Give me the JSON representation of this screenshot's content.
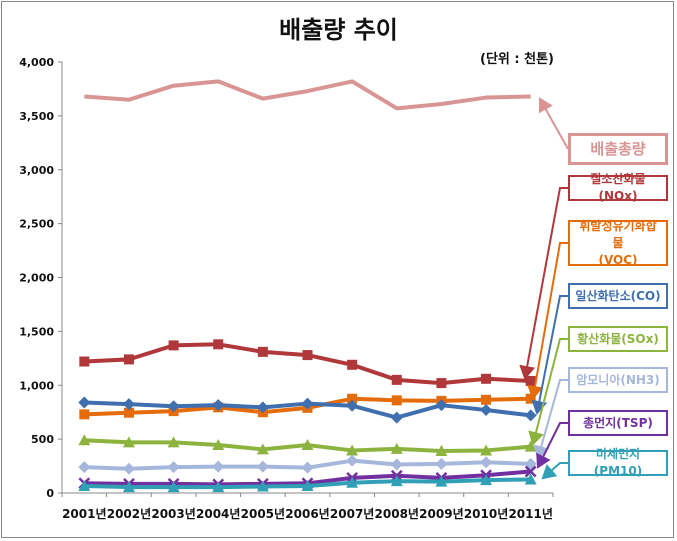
{
  "title": "배출량 추이",
  "unit_note": "(단위 : 천톤)",
  "chart_data": {
    "type": "line",
    "title": "배출량 추이",
    "ylim": [
      0,
      4000
    ],
    "yticks": [
      0,
      500,
      1000,
      1500,
      2000,
      2500,
      3000,
      3500,
      4000
    ],
    "ytick_labels": [
      "0",
      "500",
      "1,000",
      "1,500",
      "2,000",
      "2,500",
      "3,000",
      "3,500",
      "4,000"
    ],
    "categories": [
      "2001년",
      "2002년",
      "2003년",
      "2004년",
      "2005년",
      "2006년",
      "2007년",
      "2008년",
      "2009년",
      "2010년",
      "2011년"
    ],
    "legend_placement": "right, callout labels",
    "series": [
      {
        "name": "배출총량",
        "color": "#d99594",
        "marker": "none",
        "values": [
          3680,
          3650,
          3780,
          3820,
          3660,
          3730,
          3820,
          3570,
          3610,
          3670,
          3680
        ]
      },
      {
        "name": "질소산화물(NOx)",
        "color": "#b0373a",
        "marker": "square",
        "values": [
          1220,
          1240,
          1370,
          1380,
          1310,
          1280,
          1190,
          1050,
          1020,
          1060,
          1040
        ]
      },
      {
        "name": "휘발성유기화합물(VOC)",
        "color": "#e46c0a",
        "marker": "square",
        "values": [
          730,
          745,
          760,
          795,
          750,
          790,
          875,
          860,
          855,
          865,
          875
        ]
      },
      {
        "name": "일산화탄소(CO)",
        "color": "#3f6faf",
        "marker": "diamond",
        "values": [
          840,
          825,
          805,
          815,
          795,
          830,
          810,
          700,
          815,
          770,
          720
        ]
      },
      {
        "name": "황산화물(SOx)",
        "color": "#8db33f",
        "marker": "triangle",
        "values": [
          490,
          470,
          470,
          445,
          405,
          445,
          395,
          410,
          390,
          395,
          430
        ]
      },
      {
        "name": "암모니아(NH3)",
        "color": "#a6b7dc",
        "marker": "diamond",
        "values": [
          240,
          225,
          240,
          245,
          245,
          235,
          300,
          265,
          270,
          285,
          270
        ]
      },
      {
        "name": "총먼지(TSP)",
        "color": "#7030a0",
        "marker": "x",
        "values": [
          90,
          85,
          85,
          80,
          85,
          90,
          140,
          160,
          140,
          165,
          200
        ]
      },
      {
        "name": "미세먼지(PM10)",
        "color": "#31a0b6",
        "marker": "triangle",
        "values": [
          65,
          55,
          55,
          55,
          60,
          65,
          95,
          110,
          105,
          120,
          125
        ]
      }
    ],
    "legend": [
      {
        "line1": "배출총량",
        "line2": "",
        "color": "#d99594",
        "size": "large"
      },
      {
        "line1": "질소산화물(NOx)",
        "line2": "",
        "color": "#b0373a",
        "size": "normal"
      },
      {
        "line1": "휘발성유기화합물",
        "line2": "(VOC)",
        "color": "#e46c0a",
        "size": "normal"
      },
      {
        "line1": "일산화탄소(CO)",
        "line2": "",
        "color": "#3f6faf",
        "size": "normal"
      },
      {
        "line1": "황산화물(SOx)",
        "line2": "",
        "color": "#8db33f",
        "size": "normal"
      },
      {
        "line1": "암모니아(NH3)",
        "line2": "",
        "color": "#a6b7dc",
        "size": "normal"
      },
      {
        "line1": "총먼지(TSP)",
        "line2": "",
        "color": "#7030a0",
        "size": "normal"
      },
      {
        "line1": "미세먼지(PM10)",
        "line2": "",
        "color": "#31a0b6",
        "size": "normal"
      }
    ]
  }
}
